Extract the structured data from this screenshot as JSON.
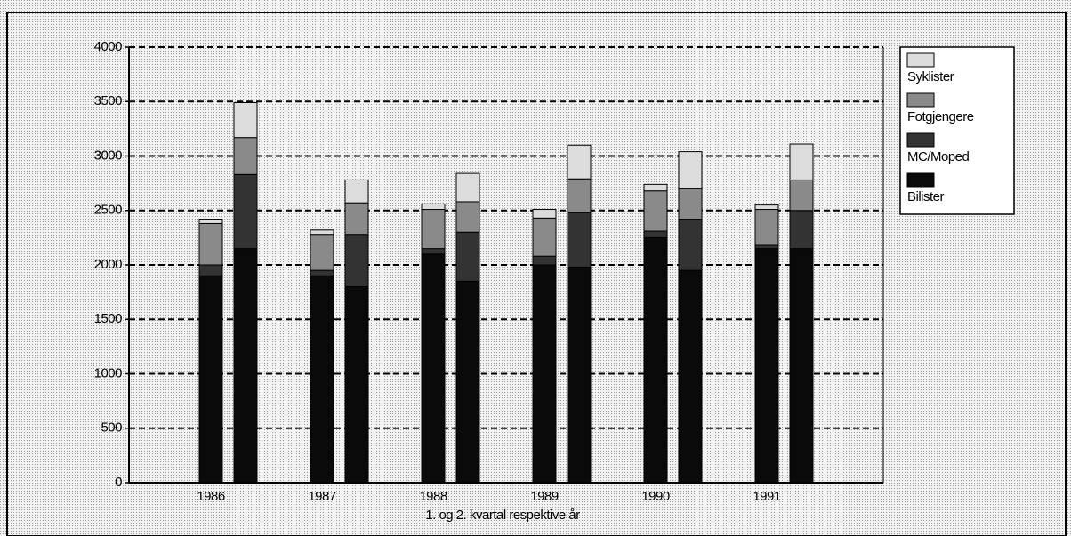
{
  "chart_data": {
    "type": "stacked-bar",
    "x_label": "1. og 2. kvartal respektive år",
    "categories": [
      "1986",
      null,
      "1987",
      null,
      "1988",
      null,
      "1989",
      null,
      "1990",
      null,
      "1991",
      null
    ],
    "series": [
      {
        "name": "Bilister",
        "color": "#0a0a0a",
        "values": [
          1900,
          2150,
          1900,
          1800,
          2100,
          1850,
          2000,
          1980,
          2250,
          1950,
          2150,
          2150
        ]
      },
      {
        "name": "MC/Moped",
        "color": "#333333",
        "values": [
          100,
          680,
          50,
          480,
          50,
          450,
          80,
          500,
          60,
          470,
          30,
          350
        ]
      },
      {
        "name": "Fotgjengere",
        "color": "#8a8a8a",
        "values": [
          380,
          340,
          330,
          290,
          360,
          280,
          350,
          310,
          370,
          280,
          330,
          280
        ]
      },
      {
        "name": "Syklister",
        "color": "#dcdcdc",
        "values": [
          40,
          320,
          40,
          210,
          50,
          260,
          80,
          310,
          60,
          340,
          40,
          330
        ]
      }
    ],
    "ylim": [
      0,
      4000
    ],
    "yticks": [
      0,
      500,
      1000,
      1500,
      2000,
      2500,
      3000,
      3500,
      4000
    ],
    "grid": true
  }
}
